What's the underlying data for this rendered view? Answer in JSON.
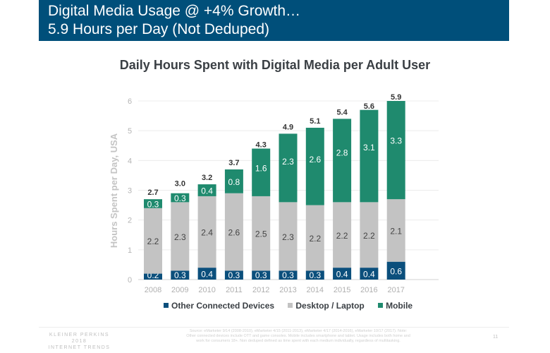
{
  "header": {
    "title_line1": "Digital Media Usage @ +4% Growth…",
    "title_line2": "5.9 Hours per Day (Not Deduped)"
  },
  "colors": {
    "header_bg": "#004f7a",
    "other": "#0b4f7c",
    "desktop": "#c3c3c3",
    "mobile": "#1f8a6e"
  },
  "chart_data": {
    "type": "bar",
    "stacked": true,
    "title": "Daily Hours Spent with Digital Media per Adult User",
    "xlabel": "",
    "ylabel": "Hours Spent per Day, USA",
    "ylim": [
      0,
      6
    ],
    "yticks": [
      0,
      1,
      2,
      3,
      4,
      5,
      6
    ],
    "grid": true,
    "legend_position": "bottom",
    "categories": [
      "2008",
      "2009",
      "2010",
      "2011",
      "2012",
      "2013",
      "2014",
      "2015",
      "2016",
      "2017"
    ],
    "series": [
      {
        "name": "Other Connected Devices",
        "color": "#0b4f7c",
        "values": [
          0.2,
          0.3,
          0.4,
          0.3,
          0.3,
          0.3,
          0.3,
          0.4,
          0.4,
          0.6
        ]
      },
      {
        "name": "Desktop / Laptop",
        "color": "#c3c3c3",
        "values": [
          2.2,
          2.3,
          2.4,
          2.6,
          2.5,
          2.3,
          2.2,
          2.2,
          2.2,
          2.1
        ]
      },
      {
        "name": "Mobile",
        "color": "#1f8a6e",
        "values": [
          0.3,
          0.3,
          0.4,
          0.8,
          1.6,
          2.3,
          2.6,
          2.8,
          3.1,
          3.3
        ]
      }
    ],
    "totals": [
      2.7,
      3.0,
      3.2,
      3.7,
      4.3,
      4.9,
      5.1,
      5.4,
      5.6,
      5.9
    ],
    "total_labels": [
      "2.7",
      "3.0",
      "3.2",
      "3.7",
      "4.3",
      "4.9",
      "5.1",
      "5.4",
      "5.6",
      "5.9"
    ]
  },
  "footer": {
    "brand_line1": "KLEINER PERKINS",
    "brand_line2": "2018",
    "brand_line3": "INTERNET TRENDS",
    "source_line1": "Source: eMarketer 9/14 (2008-2010), eMarketer 4/15 (2011-2013), eMarketer 4/17 (2014-2016), eMarketer 10/17 (2017). Note:",
    "source_line2": "Other connected devices include OTT and game consoles. Mobile includes smartphone and tablet. Usage includes both home and",
    "source_line3": "work for consumers 18+. Non deduped defined as time spent with each medium individually, regardless of multitasking.",
    "page_number": "11"
  }
}
